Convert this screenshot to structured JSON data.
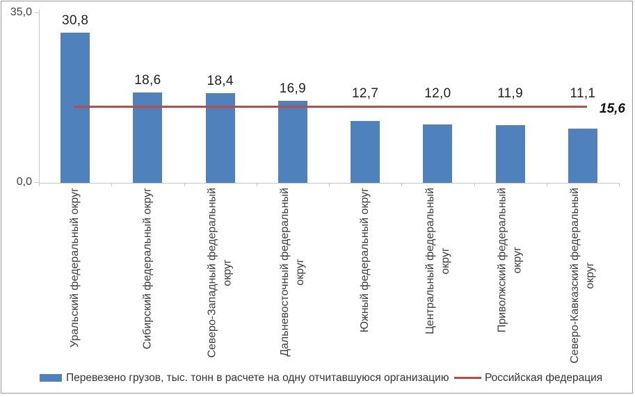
{
  "chart_data": {
    "type": "bar",
    "title": "",
    "categories": [
      "Уральский федеральный округ",
      "Сибирский федеральный округ",
      "Северо-Западный федеральный округ",
      "Дальневосточный федеральный округ",
      "Южный федеральный округ",
      "Центральный федеральный округ",
      "Приволжский федеральный округ",
      "Северо-Кавказский федеральный округ"
    ],
    "category_label_lines": [
      [
        "Уральский федеральный округ"
      ],
      [
        "Сибирский федеральный округ"
      ],
      [
        "Северо-Западный федеральный",
        "округ"
      ],
      [
        "Дальневосточный федеральный",
        "округ"
      ],
      [
        "Южный федеральный округ"
      ],
      [
        "Центральный федеральный",
        "округ"
      ],
      [
        "Приволжский федеральный",
        "округ"
      ],
      [
        "Северо-Кавказский федеральный",
        "округ"
      ]
    ],
    "series": [
      {
        "name": "Перевезено грузов, тыс. тонн в расчете на одну отчитавшуюся организацию",
        "type": "bar",
        "values": [
          30.8,
          18.6,
          18.4,
          16.9,
          12.7,
          12.0,
          11.9,
          11.1
        ],
        "value_labels": [
          "30,8",
          "18,6",
          "18,4",
          "16,9",
          "12,7",
          "12,0",
          "11,9",
          "11,1"
        ],
        "color": "#4f81bd"
      },
      {
        "name": "Российская федерация",
        "type": "line",
        "value": 15.6,
        "value_label": "15,6",
        "color": "#be4b48"
      }
    ],
    "y_axis": {
      "min": 0,
      "max": 35,
      "tick_labels": [
        "35,0",
        "0,0"
      ]
    },
    "grid": false,
    "legend_position": "bottom"
  }
}
